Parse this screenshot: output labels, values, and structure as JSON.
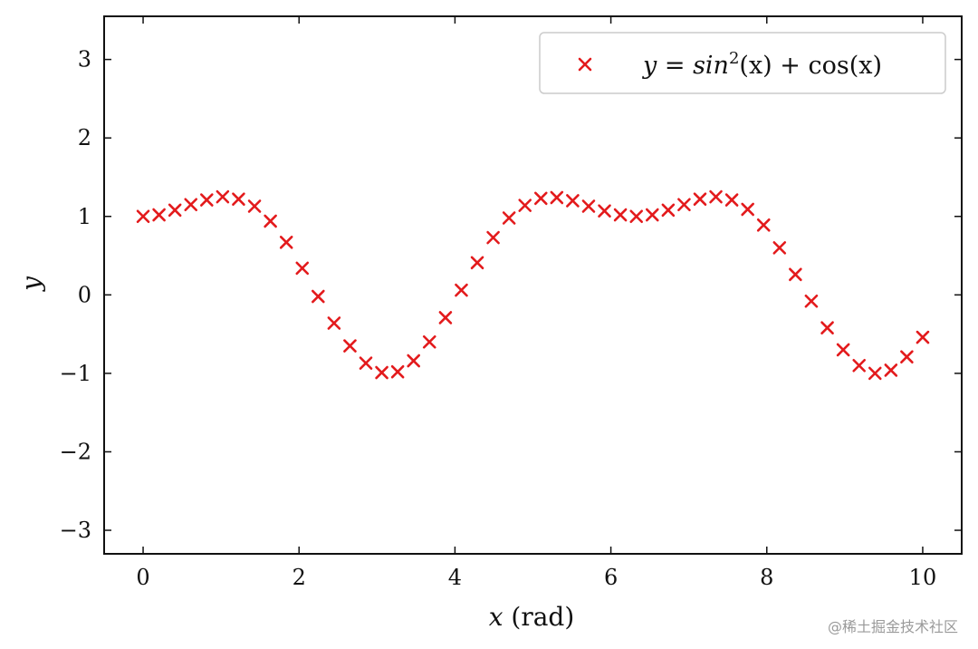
{
  "chart_data": {
    "type": "scatter",
    "xlabel_var": "x",
    "xlabel_unit": " (rad)",
    "ylabel": "y",
    "xlim": [
      -0.5,
      10.5
    ],
    "ylim": [
      -3.3,
      3.55
    ],
    "xticks": [
      0,
      2,
      4,
      6,
      8,
      10
    ],
    "yticks": [
      -3,
      -2,
      -1,
      0,
      1,
      2,
      3
    ],
    "xtick_labels": [
      "0",
      "2",
      "4",
      "6",
      "8",
      "10"
    ],
    "ytick_labels": [
      "−3",
      "−2",
      "−1",
      "0",
      "1",
      "2",
      "3"
    ],
    "grid": false,
    "legend_position": "top-right",
    "series": [
      {
        "name": "y = sin²(x) + cos(x)",
        "legend": {
          "y": "y",
          "eq": " = ",
          "sin": "sin",
          "sup": "2",
          "rest": "(x) + cos(x)"
        },
        "color": "#e31a1c",
        "marker": "x",
        "x": [
          0.0,
          0.204,
          0.408,
          0.612,
          0.816,
          1.02,
          1.224,
          1.429,
          1.633,
          1.837,
          2.041,
          2.245,
          2.449,
          2.653,
          2.857,
          3.061,
          3.265,
          3.469,
          3.673,
          3.878,
          4.082,
          4.286,
          4.49,
          4.694,
          4.898,
          5.102,
          5.306,
          5.51,
          5.714,
          5.918,
          6.122,
          6.327,
          6.531,
          6.735,
          6.939,
          7.143,
          7.347,
          7.551,
          7.755,
          7.959,
          8.163,
          8.367,
          8.571,
          8.776,
          8.98,
          9.184,
          9.388,
          9.592,
          9.796,
          10.0
        ],
        "y": [
          1.0,
          1.02,
          1.08,
          1.15,
          1.21,
          1.25,
          1.22,
          1.13,
          0.94,
          0.67,
          0.34,
          -0.02,
          -0.36,
          -0.65,
          -0.87,
          -0.99,
          -0.98,
          -0.84,
          -0.6,
          -0.29,
          0.06,
          0.41,
          0.73,
          0.98,
          1.14,
          1.23,
          1.24,
          1.2,
          1.13,
          1.07,
          1.02,
          1.0,
          1.02,
          1.08,
          1.15,
          1.22,
          1.25,
          1.21,
          1.09,
          0.89,
          0.6,
          0.26,
          -0.08,
          -0.42,
          -0.7,
          -0.9,
          -1.0,
          -0.96,
          -0.79,
          -0.54
        ]
      }
    ]
  },
  "watermark": "@稀土掘金技术社区"
}
